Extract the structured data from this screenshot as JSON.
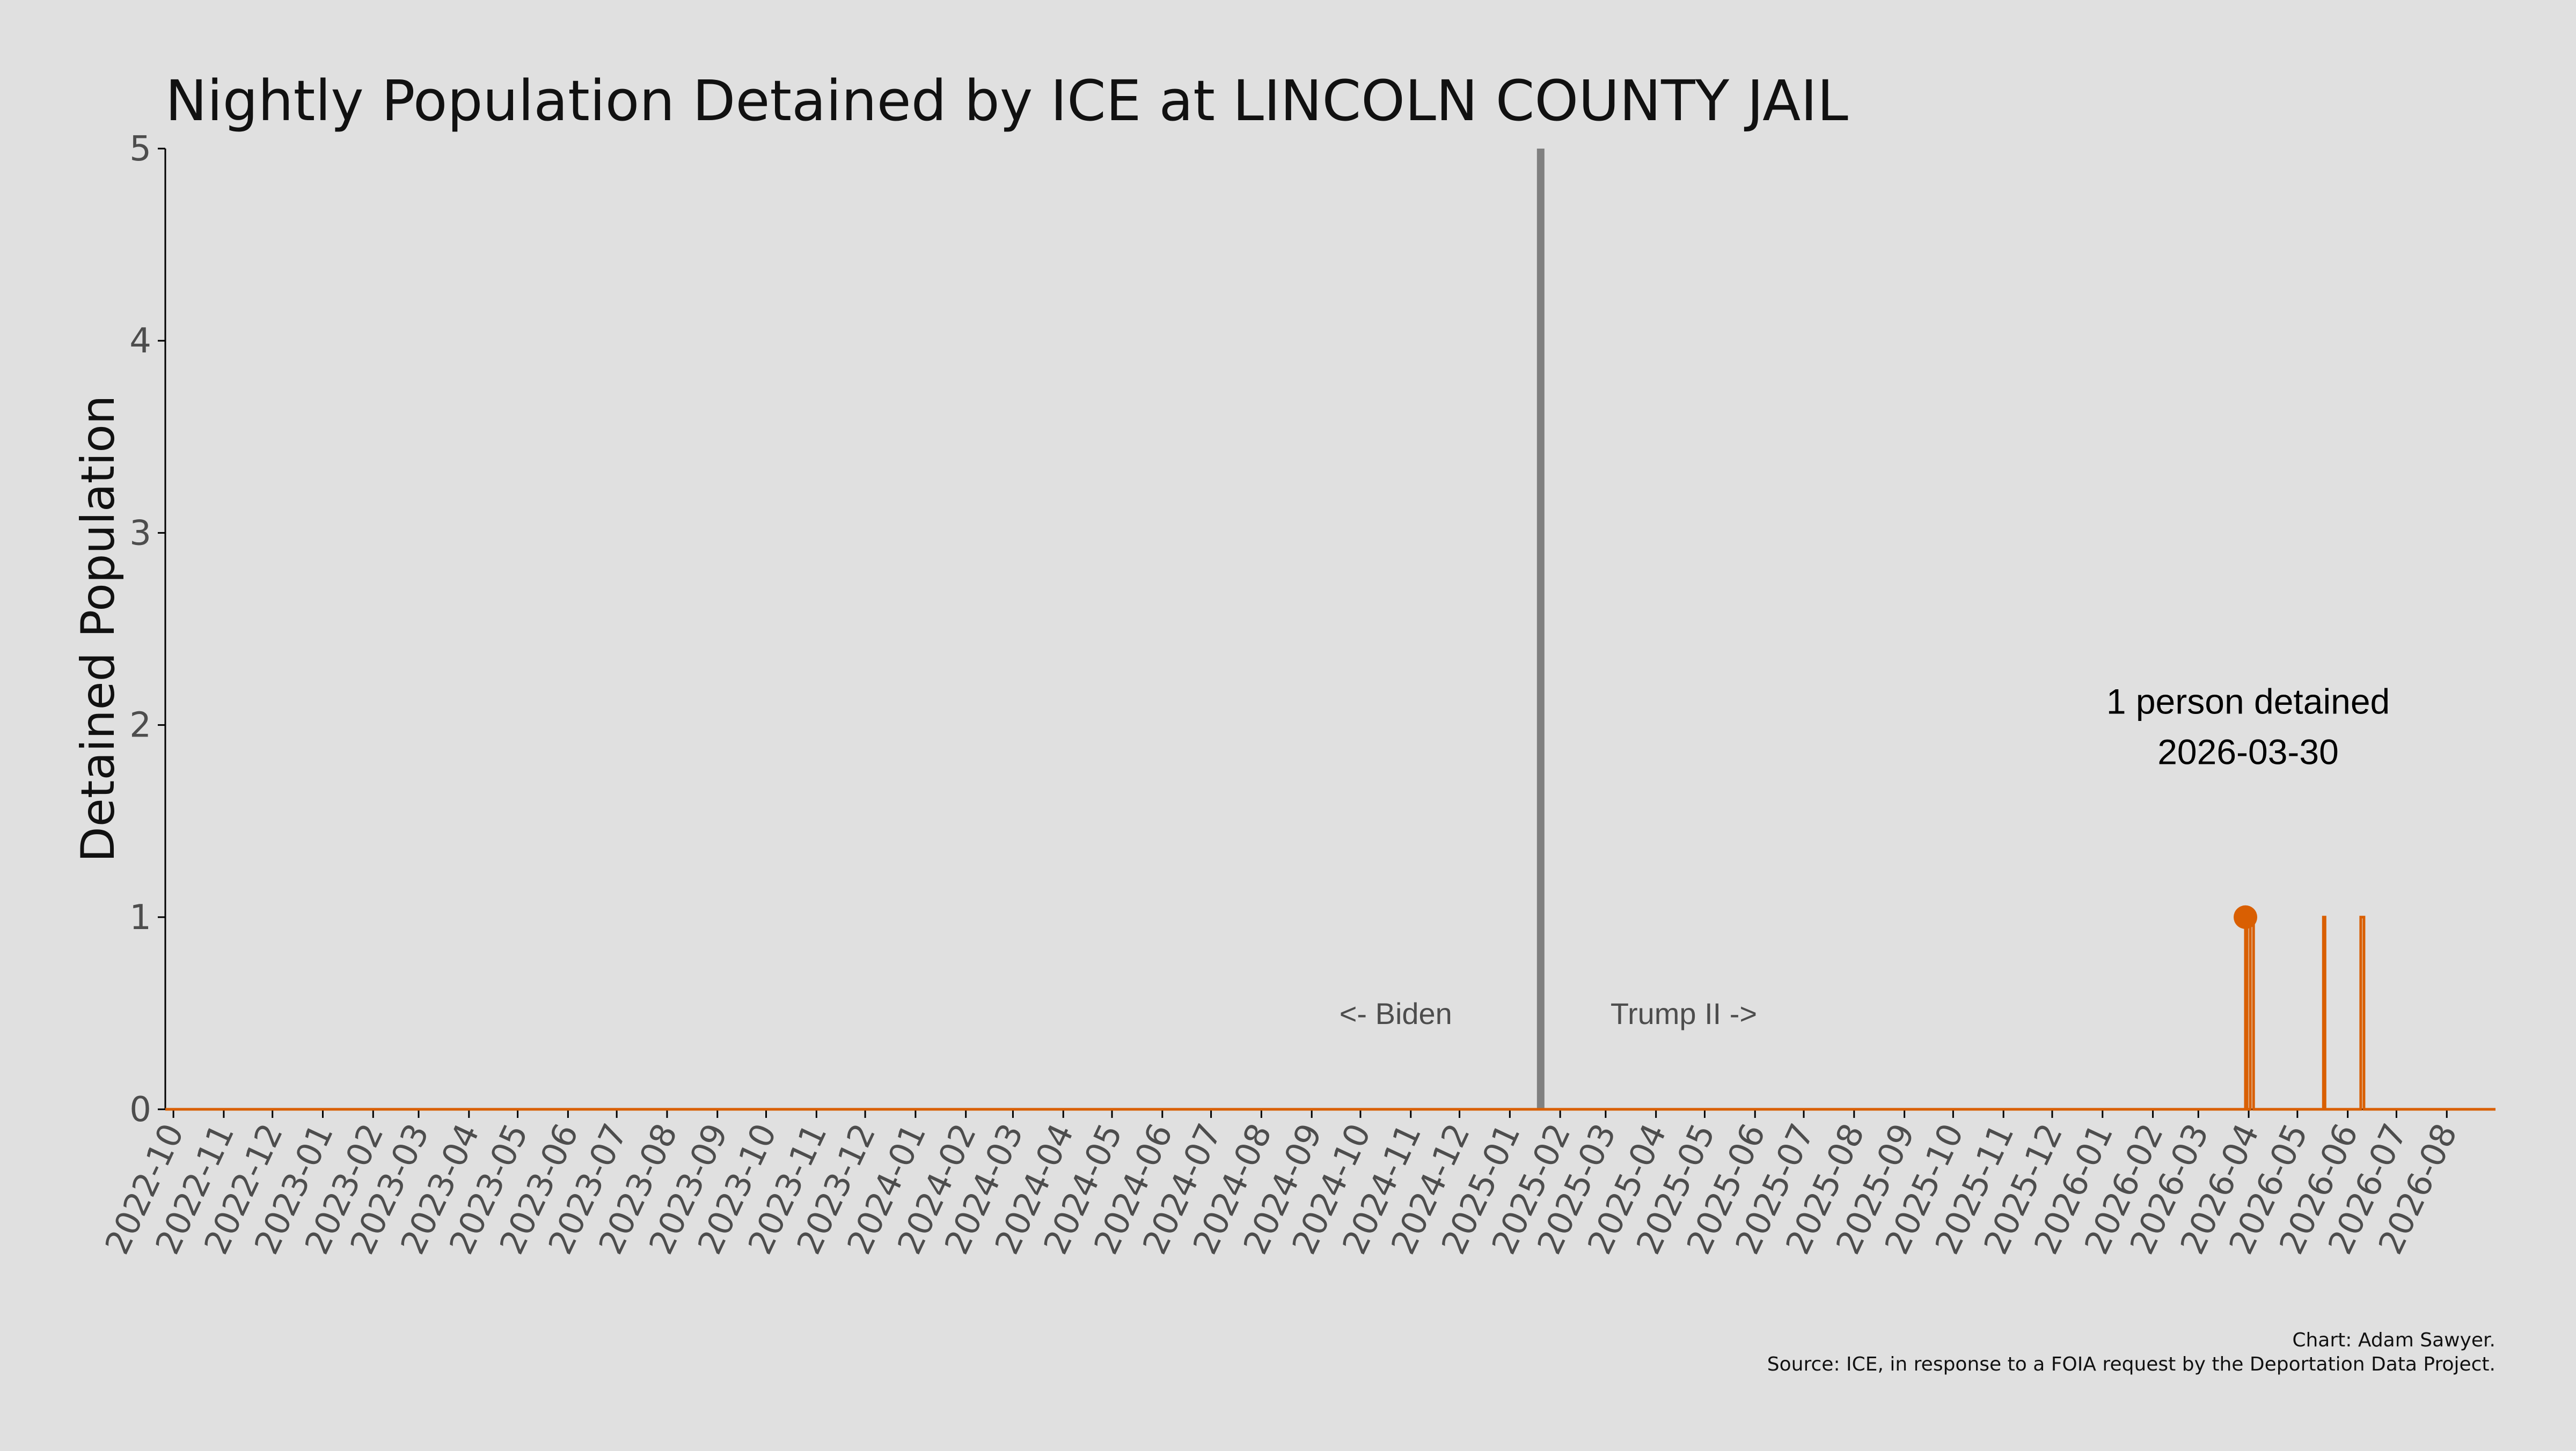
{
  "chart_data": {
    "type": "line",
    "title": "Nightly Population Detained by ICE at LINCOLN COUNTY JAIL",
    "ylabel": "Detained Population",
    "xlabel": "",
    "ylim": [
      0,
      5
    ],
    "yticks": [
      0,
      1,
      2,
      3,
      4,
      5
    ],
    "xlim": [
      "2022-09-26",
      "2026-08-31"
    ],
    "xticks": [
      "2022-10",
      "2022-11",
      "2022-12",
      "2023-01",
      "2023-02",
      "2023-03",
      "2023-04",
      "2023-05",
      "2023-06",
      "2023-07",
      "2023-08",
      "2023-09",
      "2023-10",
      "2023-11",
      "2023-12",
      "2024-01",
      "2024-02",
      "2024-03",
      "2024-04",
      "2024-05",
      "2024-06",
      "2024-07",
      "2024-08",
      "2024-09",
      "2024-10",
      "2024-11",
      "2024-12",
      "2025-01",
      "2025-02",
      "2025-03",
      "2025-04",
      "2025-05",
      "2025-06",
      "2025-07",
      "2025-08",
      "2025-09",
      "2025-10",
      "2025-11",
      "2025-12",
      "2026-01",
      "2026-02",
      "2026-03",
      "2026-04",
      "2026-05",
      "2026-06",
      "2026-07",
      "2026-08"
    ],
    "grid": false,
    "line_color": "#d95f02",
    "series": [
      {
        "points": [
          {
            "date": "2026-03-30",
            "value": 1
          },
          {
            "date": "2026-04-02",
            "value": 1
          },
          {
            "date": "2026-04-03",
            "value": 1
          },
          {
            "date": "2026-05-17",
            "value": 1
          },
          {
            "date": "2026-06-09",
            "value": 1
          },
          {
            "date": "2026-06-10",
            "value": 1
          }
        ]
      }
    ],
    "highlight": {
      "date": "2026-03-30",
      "value": 1
    },
    "divider": {
      "date": "2025-01-20",
      "color": "#808080"
    },
    "era_labels": {
      "left": "<- Biden",
      "right": "Trump II ->"
    },
    "annotation": {
      "line1": "1 person detained",
      "line2": "2026-03-30"
    },
    "caption": {
      "line1": "Chart: Adam Sawyer.",
      "line2": "Source: ICE, in response to a FOIA request by the Deportation Data Project."
    }
  }
}
